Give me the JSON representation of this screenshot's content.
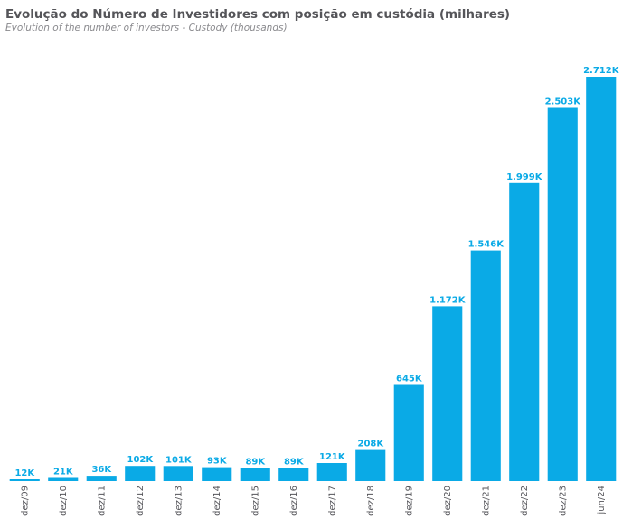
{
  "title": "Evolução do Número de Investidores com posição em custódia (milhares)",
  "subtitle": "Evolution of the number of investors - Custody (thousands)",
  "colors": {
    "bar": "#0aaae6",
    "label": "#0aaae6",
    "tick": "#55555a",
    "title": "#555559",
    "subtitle": "#8a8a8e"
  },
  "chart_data": {
    "type": "bar",
    "title": "Evolução do Número de Investidores com posição em custódia (milhares)",
    "subtitle": "Evolution of the number of investors - Custody (thousands)",
    "xlabel": "",
    "ylabel": "",
    "ylim": [
      0,
      2712
    ],
    "grid": false,
    "categories": [
      "dez/09",
      "dez/10",
      "dez/11",
      "dez/12",
      "dez/13",
      "dez/14",
      "dez/15",
      "dez/16",
      "dez/17",
      "dez/18",
      "dez/19",
      "dez/20",
      "dez/21",
      "dez/22",
      "dez/23",
      "jun/24"
    ],
    "values": [
      12,
      21,
      36,
      102,
      101,
      93,
      89,
      89,
      121,
      208,
      645,
      1172,
      1546,
      1999,
      2503,
      2712
    ],
    "data_labels": [
      "12K",
      "21K",
      "36K",
      "102K",
      "101K",
      "93K",
      "89K",
      "89K",
      "121K",
      "208K",
      "645K",
      "1.172K",
      "1.546K",
      "1.999K",
      "2.503K",
      "2.712K"
    ]
  }
}
